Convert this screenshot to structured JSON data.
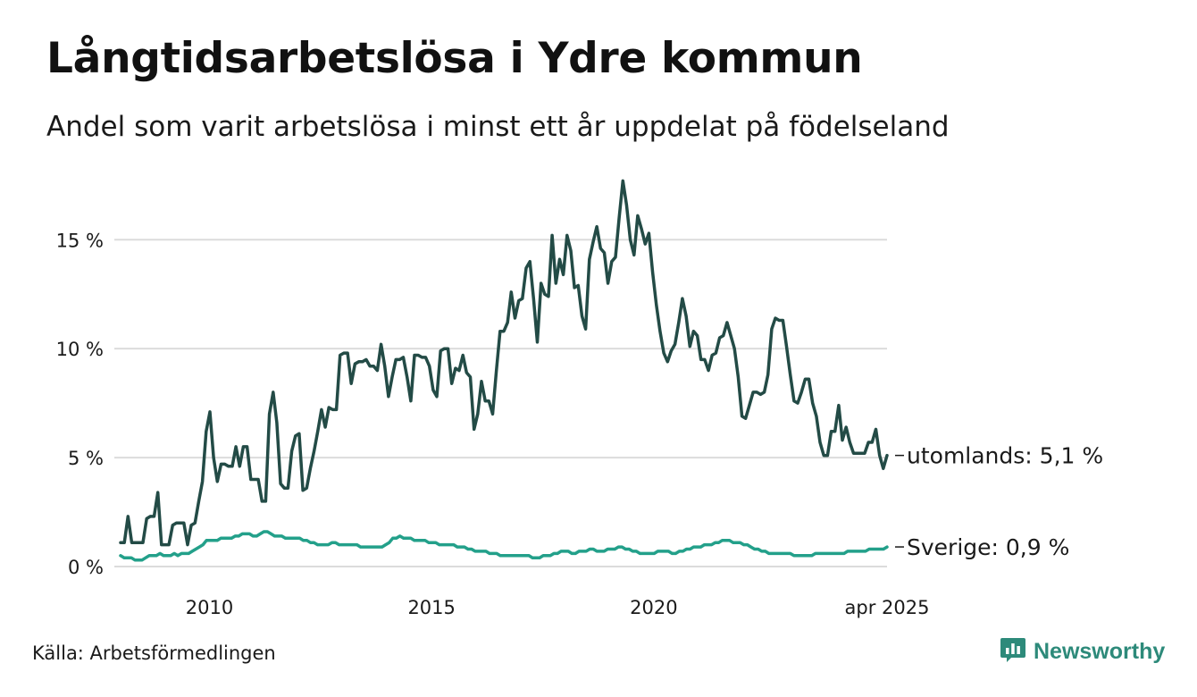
{
  "title": "Långtidsarbetslösa i Ydre kommun",
  "subtitle": "Andel som varit arbetslösa i minst ett år uppdelat på födelseland",
  "source": "Källa: Arbetsförmedlingen",
  "brand": {
    "name": "Newsworthy",
    "icon": "newsworthy-logo-icon",
    "color": "#2d8a7a"
  },
  "chart_data": {
    "type": "line",
    "x_start": "2008-01",
    "x_end": "2025-04",
    "x_ticks": [
      {
        "date": "2010-01",
        "label": "2010"
      },
      {
        "date": "2015-01",
        "label": "2015"
      },
      {
        "date": "2020-01",
        "label": "2020"
      },
      {
        "date": "2025-04",
        "label": "apr 2025"
      }
    ],
    "ylim": [
      0,
      17.8
    ],
    "y_ticks": [
      {
        "value": 0,
        "label": "0 %"
      },
      {
        "value": 5,
        "label": "5 %"
      },
      {
        "value": 10,
        "label": "10 %"
      },
      {
        "value": 15,
        "label": "15 %"
      }
    ],
    "grid": true,
    "series": [
      {
        "name": "utomlands",
        "end_label": "utomlands: 5,1 %",
        "color": "#234b46",
        "values": [
          1.1,
          1.1,
          2.3,
          1.1,
          1.1,
          1.1,
          1.1,
          2.2,
          2.3,
          2.3,
          3.4,
          1.0,
          1.0,
          1.0,
          1.9,
          2.0,
          2.0,
          2.0,
          1.0,
          1.9,
          2.0,
          3.0,
          3.9,
          6.2,
          7.1,
          5.0,
          3.9,
          4.7,
          4.7,
          4.6,
          4.6,
          5.5,
          4.6,
          5.5,
          5.5,
          4.0,
          4.0,
          4.0,
          3.0,
          3.0,
          7.0,
          8.0,
          6.6,
          3.8,
          3.6,
          3.6,
          5.3,
          6.0,
          6.1,
          3.5,
          3.6,
          4.5,
          5.3,
          6.2,
          7.2,
          6.4,
          7.3,
          7.2,
          7.2,
          9.7,
          9.8,
          9.8,
          8.4,
          9.3,
          9.4,
          9.4,
          9.5,
          9.2,
          9.2,
          9.0,
          10.2,
          9.2,
          7.8,
          8.7,
          9.5,
          9.5,
          9.6,
          8.7,
          7.6,
          9.7,
          9.7,
          9.6,
          9.6,
          9.2,
          8.1,
          7.8,
          9.9,
          10.0,
          10.0,
          8.4,
          9.1,
          9.0,
          9.7,
          8.9,
          8.7,
          6.3,
          7.0,
          8.5,
          7.6,
          7.6,
          7.0,
          9.0,
          10.8,
          10.8,
          11.2,
          12.6,
          11.4,
          12.2,
          12.3,
          13.7,
          14.0,
          12.3,
          10.3,
          13.0,
          12.5,
          12.4,
          15.2,
          13.0,
          14.1,
          13.4,
          15.2,
          14.5,
          12.8,
          12.9,
          11.5,
          10.9,
          14.1,
          14.9,
          15.6,
          14.6,
          14.4,
          13.0,
          14.0,
          14.2,
          16.0,
          17.7,
          16.6,
          15.0,
          14.3,
          16.1,
          15.5,
          14.8,
          15.3,
          13.5,
          12.0,
          10.8,
          9.8,
          9.4,
          9.9,
          10.2,
          11.2,
          12.3,
          11.5,
          10.1,
          10.8,
          10.6,
          9.5,
          9.5,
          9.0,
          9.7,
          9.8,
          10.5,
          10.6,
          11.2,
          10.6,
          10.0,
          8.7,
          6.9,
          6.8,
          7.4,
          8.0,
          8.0,
          7.9,
          8.0,
          8.8,
          10.9,
          11.4,
          11.3,
          11.3,
          10.1,
          8.8,
          7.6,
          7.5,
          8.0,
          8.6,
          8.6,
          7.5,
          6.9,
          5.7,
          5.1,
          5.1,
          6.2,
          6.2,
          7.4,
          5.8,
          6.4,
          5.7,
          5.2,
          5.2,
          5.2,
          5.2,
          5.7,
          5.7,
          6.3,
          5.1,
          4.5,
          5.1
        ]
      },
      {
        "name": "Sverige",
        "end_label": "Sverige: 0,9 %",
        "color": "#23a08a",
        "values": [
          0.5,
          0.4,
          0.4,
          0.4,
          0.3,
          0.3,
          0.3,
          0.4,
          0.5,
          0.5,
          0.5,
          0.6,
          0.5,
          0.5,
          0.5,
          0.6,
          0.5,
          0.6,
          0.6,
          0.6,
          0.7,
          0.8,
          0.9,
          1.0,
          1.2,
          1.2,
          1.2,
          1.2,
          1.3,
          1.3,
          1.3,
          1.3,
          1.4,
          1.4,
          1.5,
          1.5,
          1.5,
          1.4,
          1.4,
          1.5,
          1.6,
          1.6,
          1.5,
          1.4,
          1.4,
          1.4,
          1.3,
          1.3,
          1.3,
          1.3,
          1.3,
          1.2,
          1.2,
          1.1,
          1.1,
          1.0,
          1.0,
          1.0,
          1.0,
          1.1,
          1.1,
          1.0,
          1.0,
          1.0,
          1.0,
          1.0,
          1.0,
          0.9,
          0.9,
          0.9,
          0.9,
          0.9,
          0.9,
          0.9,
          1.0,
          1.1,
          1.3,
          1.3,
          1.4,
          1.3,
          1.3,
          1.3,
          1.2,
          1.2,
          1.2,
          1.2,
          1.1,
          1.1,
          1.1,
          1.0,
          1.0,
          1.0,
          1.0,
          1.0,
          0.9,
          0.9,
          0.9,
          0.8,
          0.8,
          0.7,
          0.7,
          0.7,
          0.7,
          0.6,
          0.6,
          0.6,
          0.5,
          0.5,
          0.5,
          0.5,
          0.5,
          0.5,
          0.5,
          0.5,
          0.5,
          0.4,
          0.4,
          0.4,
          0.5,
          0.5,
          0.5,
          0.6,
          0.6,
          0.7,
          0.7,
          0.7,
          0.6,
          0.6,
          0.7,
          0.7,
          0.7,
          0.8,
          0.8,
          0.7,
          0.7,
          0.7,
          0.8,
          0.8,
          0.8,
          0.9,
          0.9,
          0.8,
          0.8,
          0.7,
          0.7,
          0.6,
          0.6,
          0.6,
          0.6,
          0.6,
          0.7,
          0.7,
          0.7,
          0.7,
          0.6,
          0.6,
          0.7,
          0.7,
          0.8,
          0.8,
          0.9,
          0.9,
          0.9,
          1.0,
          1.0,
          1.0,
          1.1,
          1.1,
          1.2,
          1.2,
          1.2,
          1.1,
          1.1,
          1.1,
          1.0,
          1.0,
          0.9,
          0.8,
          0.8,
          0.7,
          0.7,
          0.6,
          0.6,
          0.6,
          0.6,
          0.6,
          0.6,
          0.6,
          0.5,
          0.5,
          0.5,
          0.5,
          0.5,
          0.5,
          0.6,
          0.6,
          0.6,
          0.6,
          0.6,
          0.6,
          0.6,
          0.6,
          0.6,
          0.7,
          0.7,
          0.7,
          0.7,
          0.7,
          0.7,
          0.8,
          0.8,
          0.8,
          0.8,
          0.8,
          0.9
        ]
      }
    ]
  }
}
